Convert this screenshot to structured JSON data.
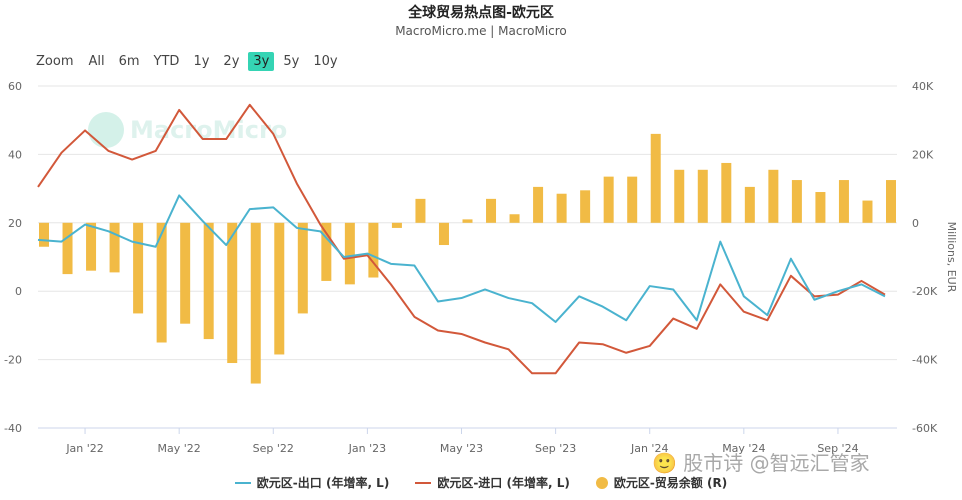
{
  "header": {
    "title": "全球贸易热点图-欧元区",
    "subtitle": "MacroMicro.me | MacroMicro"
  },
  "range_selector": {
    "label": "Zoom",
    "buttons": [
      "All",
      "6m",
      "YTD",
      "1y",
      "2y",
      "3y",
      "5y",
      "10y"
    ],
    "active": "3y"
  },
  "watermark": {
    "logo_text": "MacroMicro",
    "footer_text": "🙂 股市诗 @智远汇管家"
  },
  "colors": {
    "export": "#4ab3cf",
    "import": "#d2583a",
    "balance": "#f1bb45",
    "active_button": "#35d4b4"
  },
  "chart_data": {
    "type": "line+bar",
    "x_ticks": [
      "Jan '22",
      "May '22",
      "Sep '22",
      "Jan '23",
      "May '23",
      "Sep '23",
      "Jan '24",
      "May '24",
      "Sep '24"
    ],
    "months": [
      "2021-11",
      "2021-12",
      "2022-01",
      "2022-02",
      "2022-03",
      "2022-04",
      "2022-05",
      "2022-06",
      "2022-07",
      "2022-08",
      "2022-09",
      "2022-10",
      "2022-11",
      "2022-12",
      "2023-01",
      "2023-02",
      "2023-03",
      "2023-04",
      "2023-05",
      "2023-06",
      "2023-07",
      "2023-08",
      "2023-09",
      "2023-10",
      "2023-11",
      "2023-12",
      "2024-01",
      "2024-02",
      "2024-03",
      "2024-04",
      "2024-05",
      "2024-06",
      "2024-07",
      "2024-08",
      "2024-09",
      "2024-10",
      "2024-11"
    ],
    "y_left": {
      "label": "",
      "ticks": [
        60,
        40,
        20,
        0,
        -20,
        -40
      ],
      "range": [
        -40,
        60
      ]
    },
    "y_right": {
      "label": "Millions, EUR",
      "ticks": [
        "40K",
        "20K",
        "0",
        "-20K",
        "-40K",
        "-60K"
      ],
      "range": [
        -60000,
        40000
      ]
    },
    "series": [
      {
        "name": "欧元区-出口 (年增率, L)",
        "axis": "left",
        "type": "line",
        "values": [
          15,
          14.5,
          19.5,
          17.5,
          14.5,
          13,
          28,
          20.5,
          13.5,
          24,
          24.5,
          18.5,
          17.5,
          10,
          11,
          8,
          7.5,
          -3,
          -2,
          0.5,
          -2,
          -3.5,
          -9,
          -1.5,
          -4.5,
          -8.5,
          1.5,
          0.5,
          -8.5,
          14.5,
          -1.5,
          -7,
          9.5,
          -2.5,
          0,
          2,
          -1.5
        ]
      },
      {
        "name": "欧元区-进口 (年增率, L)",
        "axis": "left",
        "type": "line",
        "values": [
          30.5,
          40.5,
          47,
          41,
          38.5,
          41,
          53,
          44.5,
          44.5,
          54.5,
          46,
          31.5,
          19.5,
          9.5,
          10.5,
          2,
          -7.5,
          -11.5,
          -12.5,
          -15,
          -17,
          -24,
          -24,
          -15,
          -15.5,
          -18,
          -16,
          -8,
          -11,
          2,
          -6,
          -8.5,
          4.5,
          -1.5,
          -1,
          3,
          -1
        ]
      },
      {
        "name": "欧元区-贸易余额 (R)",
        "axis": "right",
        "type": "bar",
        "values": [
          -7000,
          -15000,
          -14000,
          -14500,
          -26500,
          -35000,
          -29500,
          -34000,
          -41000,
          -47000,
          -38500,
          -26500,
          -17000,
          -18000,
          -16000,
          -1500,
          7000,
          -6500,
          1000,
          7000,
          2500,
          10500,
          8500,
          9500,
          13500,
          13500,
          26000,
          15500,
          15500,
          17500,
          10500,
          15500,
          12500,
          9000,
          12500,
          6500,
          12500
        ]
      }
    ],
    "legend": [
      "欧元区-出口 (年增率, L)",
      "欧元区-进口 (年增率, L)",
      "欧元区-贸易余额 (R)"
    ],
    "grid": true,
    "legend_position": "bottom"
  }
}
